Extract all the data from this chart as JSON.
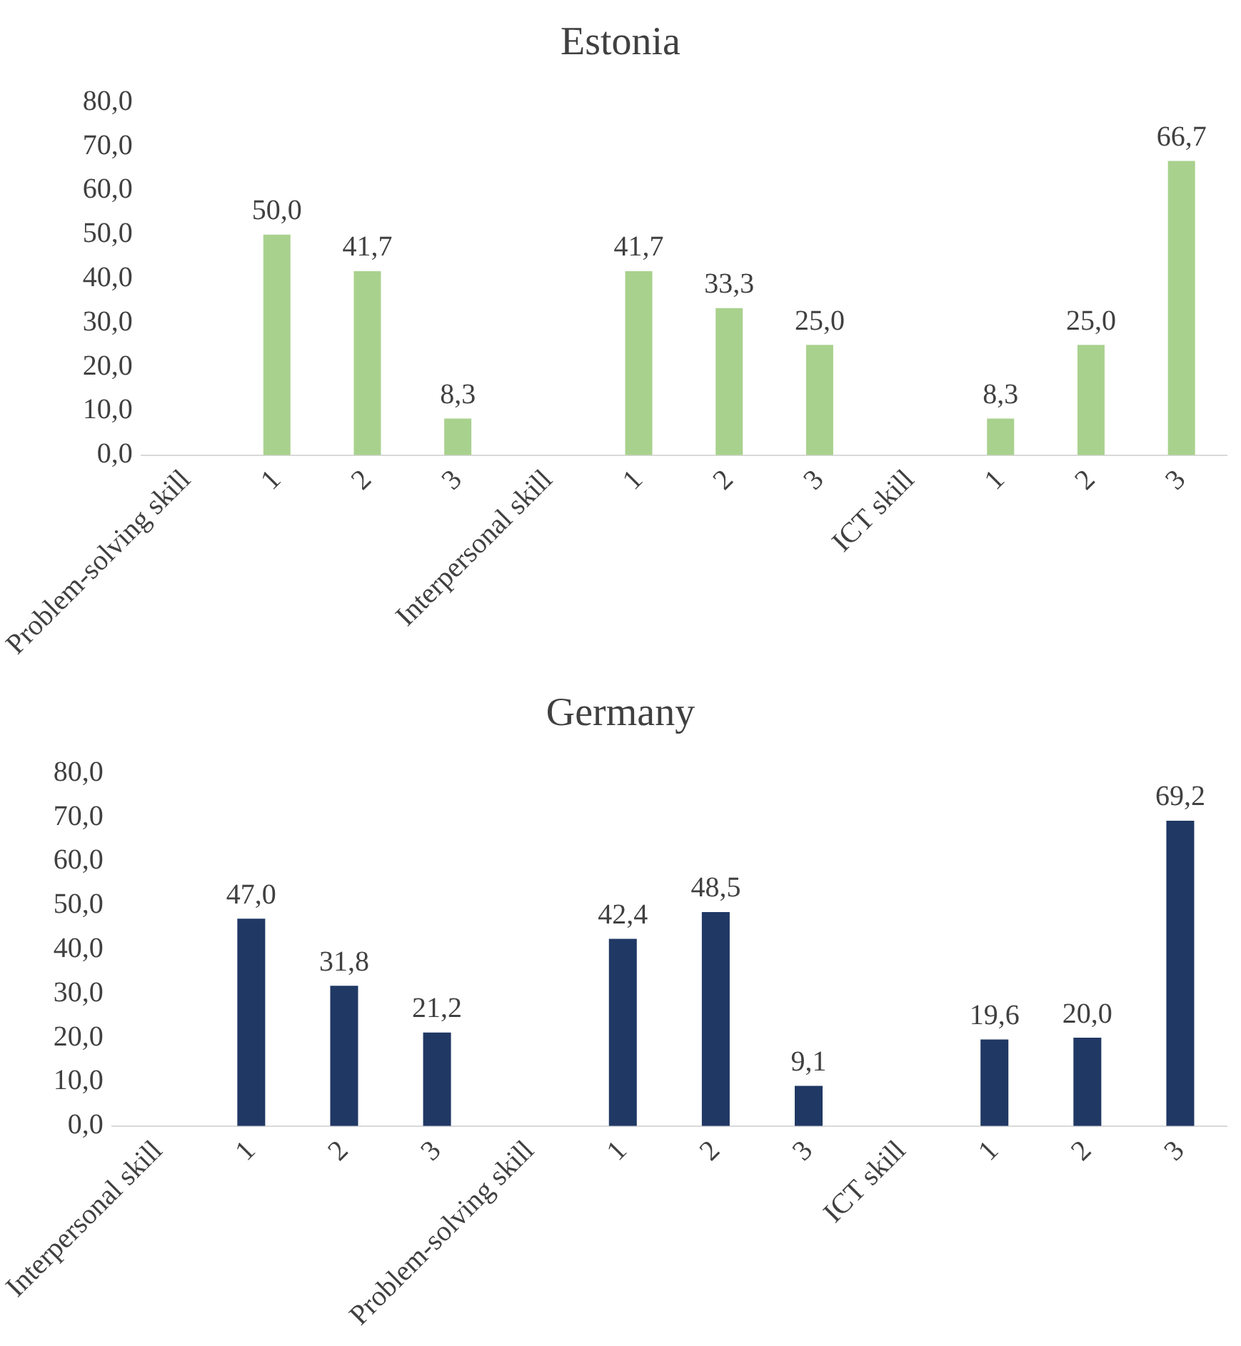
{
  "chart_data": [
    {
      "type": "bar",
      "title": "Estonia",
      "categories": [
        "Problem-solving skill",
        "1",
        "2",
        "3",
        "Interpersonal skill",
        "1",
        "2",
        "3",
        "ICT skill",
        "1",
        "2",
        "3"
      ],
      "values": [
        null,
        50.0,
        41.7,
        8.3,
        null,
        41.7,
        33.3,
        25.0,
        null,
        8.3,
        25.0,
        66.7
      ],
      "value_labels": [
        null,
        "50,0",
        "41,7",
        "8,3",
        null,
        "41,7",
        "33,3",
        "25,0",
        null,
        "8,3",
        "25,0",
        "66,7"
      ],
      "color": "#a9d18e",
      "ylim": [
        0,
        80
      ],
      "yticks": [
        {
          "value": 0,
          "label": "0,0"
        },
        {
          "value": 10,
          "label": "10,0"
        },
        {
          "value": 20,
          "label": "20,0"
        },
        {
          "value": 30,
          "label": "30,0"
        },
        {
          "value": 40,
          "label": "40,0"
        },
        {
          "value": 50,
          "label": "50,0"
        },
        {
          "value": 60,
          "label": "60,0"
        },
        {
          "value": 70,
          "label": "70,0"
        },
        {
          "value": 80,
          "label": "80,0"
        }
      ],
      "grid": false,
      "legend": false
    },
    {
      "type": "bar",
      "title": "Germany",
      "categories": [
        "Interpersonal skill",
        "1",
        "2",
        "3",
        "Problem-solving skill",
        "1",
        "2",
        "3",
        "ICT skill",
        "1",
        "2",
        "3"
      ],
      "values": [
        null,
        47.0,
        31.8,
        21.2,
        null,
        42.4,
        48.5,
        9.1,
        null,
        19.6,
        20.0,
        69.2
      ],
      "value_labels": [
        null,
        "47,0",
        "31,8",
        "21,2",
        null,
        "42,4",
        "48,5",
        "9,1",
        null,
        "19,6",
        "20,0",
        "69,2"
      ],
      "color": "#203864",
      "ylim": [
        0,
        80
      ],
      "yticks": [
        {
          "value": 0,
          "label": "0,0"
        },
        {
          "value": 10,
          "label": "10,0"
        },
        {
          "value": 20,
          "label": "20,0"
        },
        {
          "value": 30,
          "label": "30,0"
        },
        {
          "value": 40,
          "label": "40,0"
        },
        {
          "value": 50,
          "label": "50,0"
        },
        {
          "value": 60,
          "label": "60,0"
        },
        {
          "value": 70,
          "label": "70,0"
        },
        {
          "value": 80,
          "label": "80,0"
        }
      ],
      "grid": false,
      "legend": false
    }
  ]
}
